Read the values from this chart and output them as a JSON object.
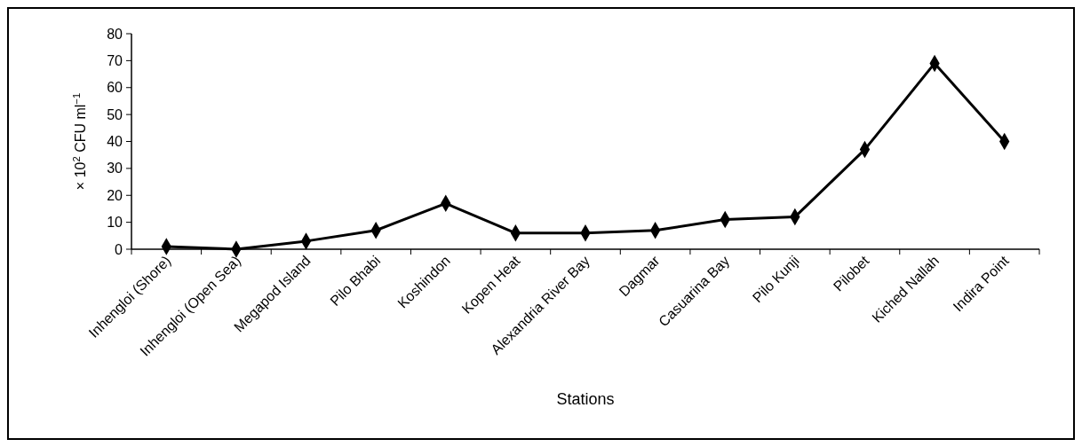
{
  "chart_data": {
    "type": "line",
    "xlabel": "Stations",
    "ylabel": "× 10$^{2}$ CFU ml$^{−1}$",
    "categories": [
      "Inhengloi (Shore)",
      "Inhengloi (Open Sea)",
      "Megapod Island",
      "Pilo Bhabi",
      "Koshindon",
      "Kopen Heat",
      "Alexandria River Bay",
      "Dagmar",
      "Casuarina Bay",
      "Pilo Kunji",
      "Pilobet",
      "Kiched Nallah",
      "Indira Point"
    ],
    "series": [
      {
        "color": "#000000",
        "values": [
          1,
          0,
          3,
          7,
          17,
          6,
          6,
          7,
          11,
          12,
          37,
          69,
          40
        ]
      }
    ],
    "ylim": [
      0,
      80
    ],
    "yticks": [
      0,
      10,
      20,
      30,
      40,
      50,
      60,
      70,
      80
    ],
    "grid": false,
    "marker": "diamond",
    "line_style": "solid"
  }
}
